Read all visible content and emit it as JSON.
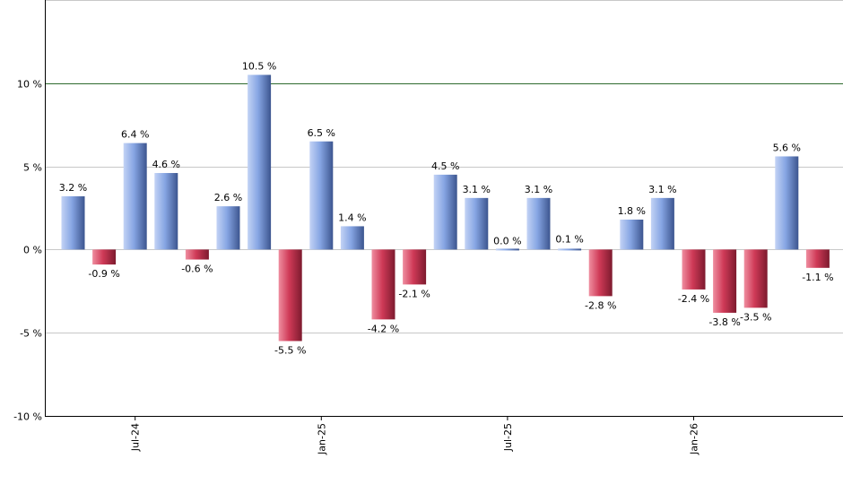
{
  "chart_data": {
    "type": "bar",
    "title": "",
    "xlabel": "",
    "ylabel": "",
    "ylim": [
      -10,
      15
    ],
    "y_ticks": [
      {
        "value": 10,
        "label": "10 %"
      },
      {
        "value": 5,
        "label": "5 %"
      },
      {
        "value": 0,
        "label": "0 %"
      },
      {
        "value": -5,
        "label": "-5 %"
      },
      {
        "value": -10,
        "label": "-10 %"
      }
    ],
    "x_ticks": [
      {
        "index": 2,
        "label": "Jul-24"
      },
      {
        "index": 8,
        "label": "Jan-25"
      },
      {
        "index": 14,
        "label": "Jul-25"
      },
      {
        "index": 20,
        "label": "Jan-26"
      }
    ],
    "reference_line": {
      "value": 10,
      "color": "#2e6b2e"
    },
    "grid": true,
    "positive_color": "#7f9fdb",
    "negative_color": "#c8334f",
    "values": [
      3.2,
      -0.9,
      6.4,
      4.6,
      -0.6,
      2.6,
      10.5,
      -5.5,
      6.5,
      1.4,
      -4.2,
      -2.1,
      4.5,
      3.1,
      0.0,
      3.1,
      0.1,
      -2.8,
      1.8,
      3.1,
      -2.4,
      -3.8,
      -3.5,
      5.6,
      -1.1
    ],
    "labels": [
      "3.2 %",
      "-0.9 %",
      "6.4 %",
      "4.6 %",
      "-0.6 %",
      "2.6 %",
      "10.5 %",
      "-5.5 %",
      "6.5 %",
      "1.4 %",
      "-4.2 %",
      "-2.1 %",
      "4.5 %",
      "3.1 %",
      "0.0 %",
      "3.1 %",
      "0.1 %",
      "-2.8 %",
      "1.8 %",
      "3.1 %",
      "-2.4 %",
      "-3.8 %",
      "-3.5 %",
      "5.6 %",
      "-1.1 %"
    ]
  }
}
